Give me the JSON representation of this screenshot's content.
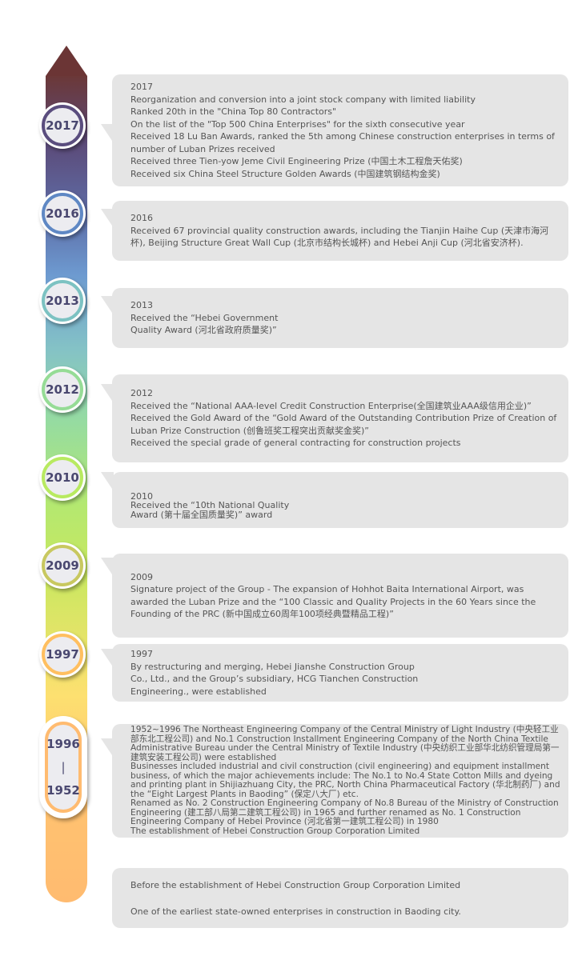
{
  "timeline": {
    "colors": {
      "top": "#6b3535",
      "bottom": "#ffbb70",
      "box": "#e5e5e5",
      "year_text": "#4a4870"
    },
    "entries": [
      {
        "badge": "2017",
        "ring": "#5a4d7e",
        "lines": [
          "2017",
          "Reorganization and conversion into a joint stock company with limited liability",
          "Ranked 20th in the \"China Top 80 Contractors\"",
          "On the list of the \"Top 500 China Enterprises\" for the sixth consecutive year",
          "Received 18 Lu Ban Awards, ranked the 5th among Chinese construction enterprises in terms of number of Luban Prizes received",
          "Received three Tien-yow Jeme Civil Engineering Prize (中国土木工程詹天佑奖)",
          "Received six China Steel Structure Golden Awards (中国建筑钢结构金奖)"
        ]
      },
      {
        "badge": "2016",
        "ring": "#5f88c4",
        "lines": [
          "2016",
          "Received 67 provincial quality construction awards, including the Tianjin Haihe Cup (天津市海河杯), Beijing Structure Great Wall Cup (北京市结构长城杯) and Hebei Anji Cup (河北省安济杯)."
        ]
      },
      {
        "badge": "2013",
        "ring": "#7cc2c2",
        "lines": [
          "2013",
          "Received the “Hebei Government",
          "Quality Award (河北省政府质量奖)”"
        ]
      },
      {
        "badge": "2012",
        "ring": "#96dc96",
        "lines": [
          "2012",
          "Received the “National AAA-level Credit Construction Enterprise(全国建筑业AAA级信用企业)”",
          "Received the Gold Award of the “Gold Award of the Outstanding Contribution Prize of Creation of Luban Prize Construction (创鲁班奖工程突出贡献奖金奖)”",
          "Received the special grade of general contracting for construction projects"
        ]
      },
      {
        "badge": "2010",
        "ring": "#b8ea60",
        "lines": [
          "2010",
          "Received the “10th National Quality",
          "Award (第十届全国质量奖)” award"
        ]
      },
      {
        "badge": "2009",
        "ring": "#c8c860",
        "lines": [
          "2009",
          "Signature project of the Group - The expansion of Hohhot Baita International Airport, was awarded the Luban Prize and the “100 Classic and Quality Projects in the 60 Years since the Founding of the PRC (新中国成立60周年100项经典暨精品工程)”"
        ]
      },
      {
        "badge": "1997",
        "ring": "#ffbf60",
        "lines": [
          "1997",
          "By restructuring and merging, Hebei Jianshe Construction Group",
          "Co., Ltd., and the Group’s subsidiary, HCG Tianchen Construction",
          "Engineering., were established"
        ]
      },
      {
        "badge_top": "1996",
        "badge_sep": "|",
        "badge_bottom": "1952",
        "ring": "#ffbb70",
        "lines": [
          "1952~1996 The Northeast Engineering Company of the Central Ministry of Light Industry (中央轻工业部东北工程公司) and No.1 Construction Installment Engineering Company of the North China Textile Administrative Bureau under the Central Ministry of Textile Industry (中央纺织工业部华北纺织管理局第一建筑安装工程公司) were established",
          "Businesses included industrial and civil construction (civil engineering) and equipment installment business, of which the major achievements include: The No.1 to No.4 State Cotton Mills and dyeing and printing plant in Shijiazhuang City, the PRC, North China Pharmaceutical Factory (华北制药厂) and the “Eight Largest Plants in Baoding” (保定八大厂) etc.",
          "Renamed as No. 2 Construction Engineering Company of No.8 Bureau of the Ministry of Construction Engineering (建工部八局第二建筑工程公司) in 1965 and further renamed as No. 1 Construction Engineering Company of Hebei Province (河北省第一建筑工程公司) in 1980",
          "The establishment of Hebei Construction Group Corporation Limited"
        ]
      },
      {
        "lines": [
          "Before the establishment of Hebei Construction Group Corporation Limited",
          "One of the earliest state-owned enterprises in construction in Baoding city."
        ]
      }
    ]
  }
}
